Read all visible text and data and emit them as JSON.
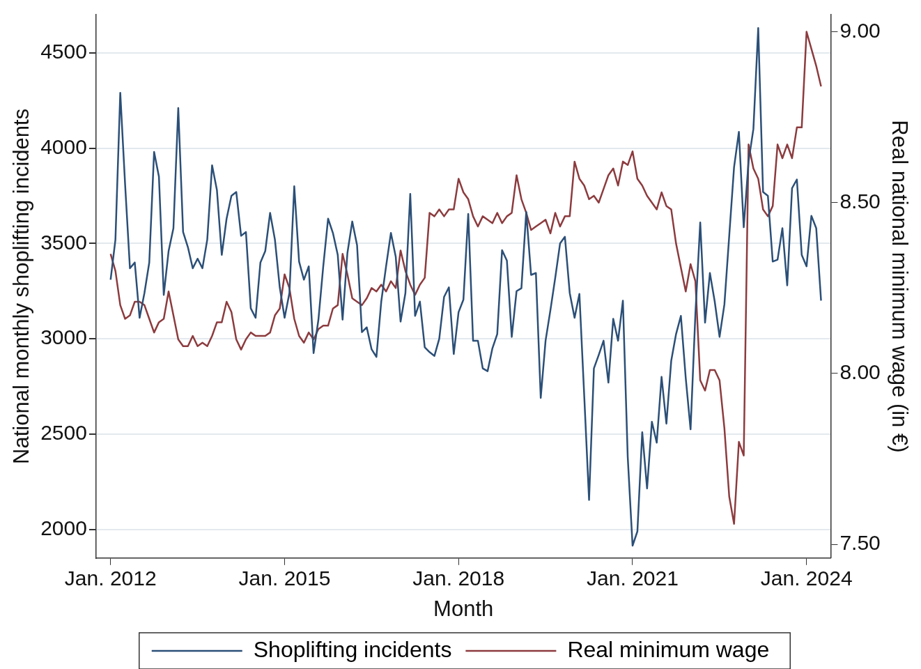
{
  "chart_data": {
    "type": "line",
    "xlabel": "Month",
    "ylabel": "National monthly shoplifting incidents",
    "y2label": "Real national minimum wage (in €)",
    "x": [
      "2012-01",
      "2012-02",
      "2012-03",
      "2012-04",
      "2012-05",
      "2012-06",
      "2012-07",
      "2012-08",
      "2012-09",
      "2012-10",
      "2012-11",
      "2012-12",
      "2013-01",
      "2013-02",
      "2013-03",
      "2013-04",
      "2013-05",
      "2013-06",
      "2013-07",
      "2013-08",
      "2013-09",
      "2013-10",
      "2013-11",
      "2013-12",
      "2014-01",
      "2014-02",
      "2014-03",
      "2014-04",
      "2014-05",
      "2014-06",
      "2014-07",
      "2014-08",
      "2014-09",
      "2014-10",
      "2014-11",
      "2014-12",
      "2015-01",
      "2015-02",
      "2015-03",
      "2015-04",
      "2015-05",
      "2015-06",
      "2015-07",
      "2015-08",
      "2015-09",
      "2015-10",
      "2015-11",
      "2015-12",
      "2016-01",
      "2016-02",
      "2016-03",
      "2016-04",
      "2016-05",
      "2016-06",
      "2016-07",
      "2016-08",
      "2016-09",
      "2016-10",
      "2016-11",
      "2016-12",
      "2017-01",
      "2017-02",
      "2017-03",
      "2017-04",
      "2017-05",
      "2017-06",
      "2017-07",
      "2017-08",
      "2017-09",
      "2017-10",
      "2017-11",
      "2017-12",
      "2018-01",
      "2018-02",
      "2018-03",
      "2018-04",
      "2018-05",
      "2018-06",
      "2018-07",
      "2018-08",
      "2018-09",
      "2018-10",
      "2018-11",
      "2018-12",
      "2019-01",
      "2019-02",
      "2019-03",
      "2019-04",
      "2019-05",
      "2019-06",
      "2019-07",
      "2019-08",
      "2019-09",
      "2019-10",
      "2019-11",
      "2019-12",
      "2020-01",
      "2020-02",
      "2020-03",
      "2020-04",
      "2020-05",
      "2020-06",
      "2020-07",
      "2020-08",
      "2020-09",
      "2020-10",
      "2020-11",
      "2020-12",
      "2021-01",
      "2021-02",
      "2021-03",
      "2021-04",
      "2021-05",
      "2021-06",
      "2021-07",
      "2021-08",
      "2021-09",
      "2021-10",
      "2021-11",
      "2021-12",
      "2022-01",
      "2022-02",
      "2022-03",
      "2022-04",
      "2022-05",
      "2022-06",
      "2022-07",
      "2022-08",
      "2022-09",
      "2022-10",
      "2022-11",
      "2022-12",
      "2023-01",
      "2023-02",
      "2023-03",
      "2023-04",
      "2023-05",
      "2023-06",
      "2023-07",
      "2023-08",
      "2023-09",
      "2023-10",
      "2023-11",
      "2023-12",
      "2024-01",
      "2024-02",
      "2024-03",
      "2024-04"
    ],
    "series": [
      {
        "name": "Shoplifting incidents",
        "color": "#2b4f77",
        "values": [
          3310,
          3520,
          4290,
          3810,
          3370,
          3400,
          3110,
          3240,
          3400,
          3980,
          3850,
          3230,
          3460,
          3580,
          4210,
          3560,
          3480,
          3370,
          3420,
          3370,
          3520,
          3910,
          3780,
          3440,
          3630,
          3750,
          3770,
          3540,
          3560,
          3160,
          3110,
          3400,
          3460,
          3660,
          3520,
          3270,
          3110,
          3240,
          3800,
          3405,
          3310,
          3380,
          2925,
          3100,
          3380,
          3630,
          3555,
          3440,
          3100,
          3450,
          3615,
          3490,
          3035,
          3060,
          2945,
          2905,
          3195,
          3380,
          3555,
          3430,
          3090,
          3240,
          3760,
          3120,
          3195,
          2955,
          2930,
          2910,
          3000,
          3220,
          3270,
          2920,
          3140,
          3205,
          3655,
          2990,
          2990,
          2845,
          2830,
          2950,
          3025,
          3465,
          3410,
          3010,
          3250,
          3265,
          3665,
          3335,
          3345,
          2690,
          2990,
          3150,
          3320,
          3500,
          3535,
          3240,
          3110,
          3235,
          2700,
          2155,
          2845,
          2915,
          2990,
          2770,
          3105,
          2990,
          3200,
          2380,
          1915,
          1990,
          2510,
          2215,
          2565,
          2455,
          2800,
          2555,
          2885,
          3025,
          3120,
          2795,
          2525,
          3130,
          3610,
          3085,
          3345,
          3195,
          3010,
          3180,
          3540,
          3900,
          4085,
          3585,
          3930,
          4100,
          4630,
          3770,
          3750,
          3405,
          3415,
          3580,
          3280,
          3790,
          3835,
          3440,
          3380,
          3645,
          3580,
          3200
        ]
      },
      {
        "name": "Real minimum wage",
        "color": "#8c3b3e",
        "axis": "y2",
        "values": [
          8.35,
          8.3,
          8.2,
          8.16,
          8.17,
          8.21,
          8.21,
          8.2,
          8.16,
          8.12,
          8.15,
          8.16,
          8.24,
          8.17,
          8.1,
          8.08,
          8.08,
          8.11,
          8.08,
          8.09,
          8.08,
          8.11,
          8.15,
          8.15,
          8.21,
          8.18,
          8.1,
          8.07,
          8.1,
          8.12,
          8.11,
          8.11,
          8.11,
          8.12,
          8.17,
          8.19,
          8.29,
          8.25,
          8.16,
          8.11,
          8.09,
          8.12,
          8.1,
          8.13,
          8.14,
          8.14,
          8.19,
          8.2,
          8.35,
          8.29,
          8.22,
          8.21,
          8.2,
          8.22,
          8.25,
          8.24,
          8.26,
          8.24,
          8.27,
          8.25,
          8.36,
          8.3,
          8.26,
          8.23,
          8.26,
          8.28,
          8.47,
          8.46,
          8.48,
          8.46,
          8.48,
          8.48,
          8.57,
          8.53,
          8.51,
          8.46,
          8.43,
          8.46,
          8.45,
          8.44,
          8.47,
          8.44,
          8.46,
          8.47,
          8.58,
          8.51,
          8.47,
          8.42,
          8.43,
          8.44,
          8.45,
          8.41,
          8.47,
          8.43,
          8.46,
          8.46,
          8.62,
          8.57,
          8.55,
          8.51,
          8.52,
          8.5,
          8.54,
          8.58,
          8.6,
          8.55,
          8.62,
          8.61,
          8.65,
          8.57,
          8.55,
          8.52,
          8.5,
          8.48,
          8.53,
          8.49,
          8.48,
          8.38,
          8.31,
          8.24,
          8.32,
          8.27,
          7.98,
          7.95,
          8.01,
          8.01,
          7.98,
          7.84,
          7.64,
          7.56,
          7.8,
          7.76,
          8.67,
          8.6,
          8.57,
          8.48,
          8.46,
          8.49,
          8.67,
          8.63,
          8.67,
          8.63,
          8.72,
          8.72,
          9.0,
          8.95,
          8.9,
          8.84
        ]
      }
    ],
    "xlim": [
      "2011-10",
      "2024-06"
    ],
    "xticks": [
      {
        "value": "2012-01",
        "label": "Jan. 2012"
      },
      {
        "value": "2015-01",
        "label": "Jan. 2015"
      },
      {
        "value": "2018-01",
        "label": "Jan. 2018"
      },
      {
        "value": "2021-01",
        "label": "Jan. 2021"
      },
      {
        "value": "2024-01",
        "label": "Jan. 2024"
      }
    ],
    "ylim": [
      1850,
      4700
    ],
    "yticks": [
      2000,
      2500,
      3000,
      3500,
      4000,
      4500
    ],
    "y2lim": [
      7.46,
      9.05
    ],
    "y2ticks": [
      {
        "value": 7.5,
        "label": "7.50"
      },
      {
        "value": 8,
        "label": "8.00"
      },
      {
        "value": 8.5,
        "label": "8.50"
      },
      {
        "value": 9,
        "label": "9.00"
      }
    ],
    "grid": "y",
    "legend": "bottom",
    "marker": "none",
    "line_style": "solid"
  }
}
